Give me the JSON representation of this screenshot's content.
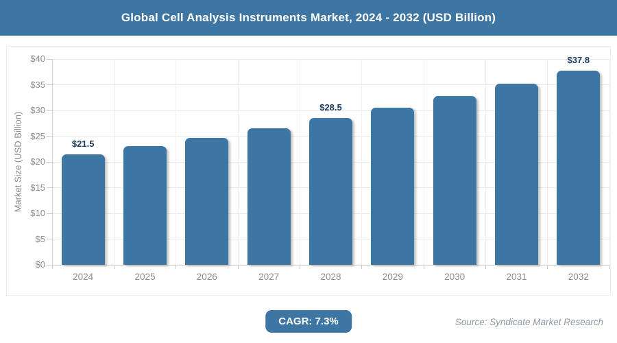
{
  "header": {
    "title": "Global Cell Analysis Instruments Market, 2024 - 2032 (USD Billion)"
  },
  "chart_data": {
    "type": "bar",
    "title": "Global Cell Analysis Instruments Market, 2024 - 2032 (USD Billion)",
    "categories": [
      "2024",
      "2025",
      "2026",
      "2027",
      "2028",
      "2029",
      "2030",
      "2031",
      "2032"
    ],
    "values": [
      21.5,
      23.1,
      24.7,
      26.6,
      28.5,
      30.6,
      32.8,
      35.2,
      37.8
    ],
    "labeled_points": [
      {
        "category": "2024",
        "label": "$21.5"
      },
      {
        "category": "2028",
        "label": "$28.5"
      },
      {
        "category": "2032",
        "label": "$37.8"
      }
    ],
    "xlabel": "",
    "ylabel": "Market Size (USD Billion)",
    "ylim": [
      0,
      40
    ],
    "ytick_step": 5,
    "ytick_prefix": "$",
    "grid": true,
    "legend": false
  },
  "footer": {
    "cagr_label": "CAGR: 7.3%",
    "source": "Source: Syndicate Market Research"
  },
  "colors": {
    "title_bar_bg": "#3d76a3",
    "title_text": "#ffffff",
    "bar_fill": "#3d76a3",
    "data_label_text": "#1c3c5e",
    "axis_text": "#8c8c8c",
    "gridline": "#e9e9e9",
    "axis_line": "#c6c6c6",
    "panel_border": "#edeff1",
    "badge_bg": "#3d76a3",
    "badge_text": "#ffffff",
    "source_text": "#8d99a2"
  }
}
